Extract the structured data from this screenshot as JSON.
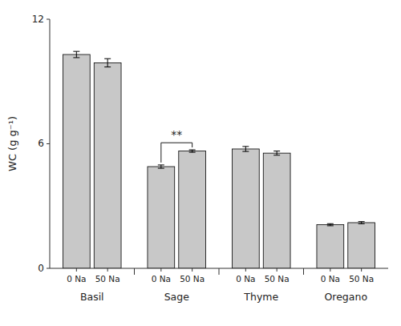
{
  "chart_data": {
    "type": "bar",
    "categories": [
      "Basil",
      "Sage",
      "Thyme",
      "Oregano"
    ],
    "series": [
      {
        "name": "0 Na",
        "color": "#c8c8c8",
        "values": [
          10.3,
          4.9,
          5.75,
          2.1
        ],
        "errors": [
          0.15,
          0.08,
          0.12,
          0.05
        ]
      },
      {
        "name": "50 Na",
        "color": "#c8c8c8",
        "values": [
          9.9,
          5.65,
          5.55,
          2.2
        ],
        "errors": [
          0.2,
          0.06,
          0.1,
          0.05
        ]
      }
    ],
    "ylabel": "WC (g g⁻¹)",
    "ylim": [
      0,
      12
    ],
    "yticks": [
      0,
      6,
      12
    ],
    "grid": false,
    "annotations": [
      {
        "text": "**",
        "category": "Sage",
        "y": 6.05,
        "text_y": 6.25
      }
    ]
  }
}
